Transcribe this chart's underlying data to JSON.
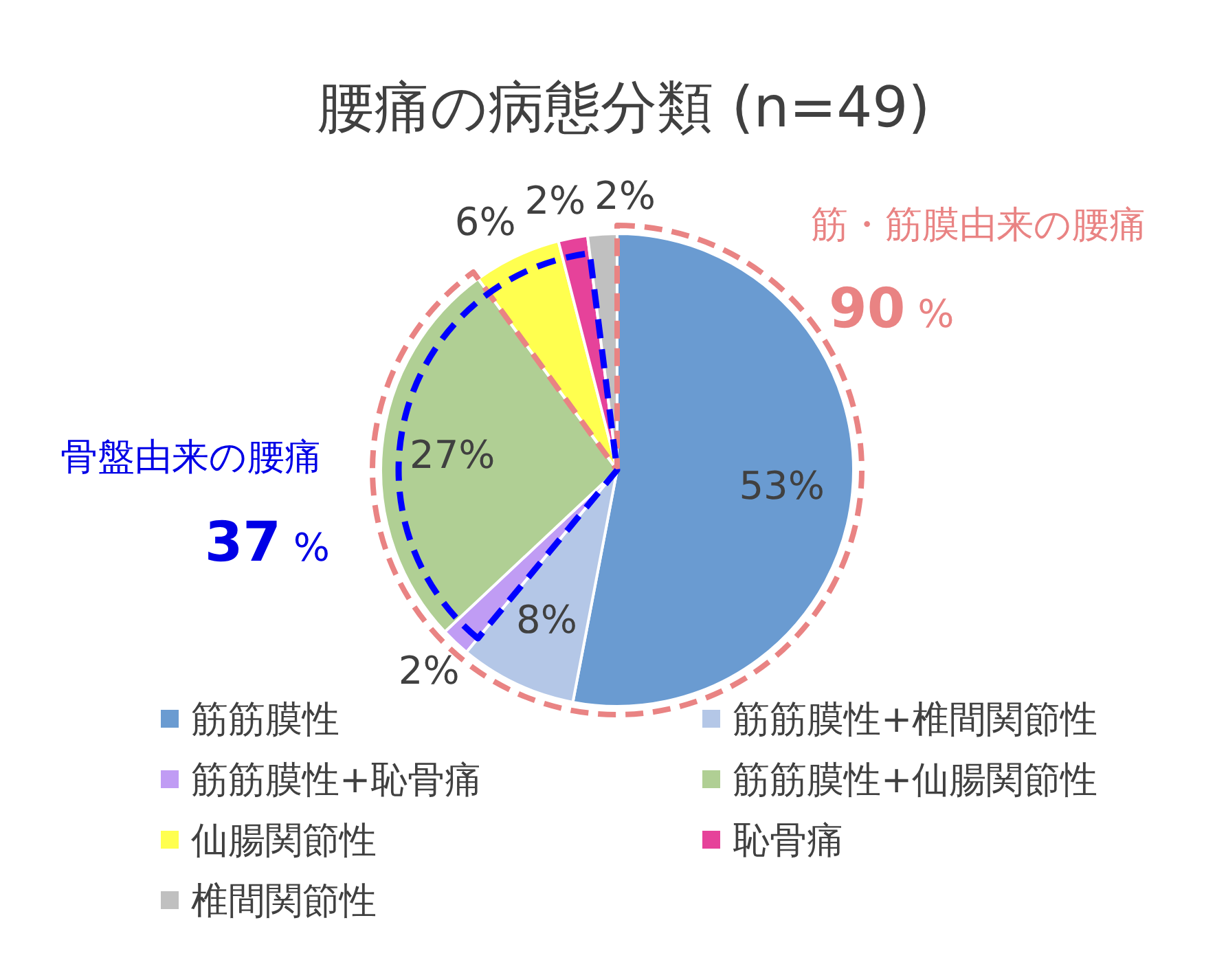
{
  "chart_data": {
    "type": "pie",
    "title": "腰痛の病態分類 (n=49)",
    "categories": [
      "筋筋膜性",
      "筋筋膜性+椎間関節性",
      "筋筋膜性+恥骨痛",
      "筋筋膜性+仙腸関節性",
      "仙腸関節性",
      "恥骨痛",
      "椎間関節性"
    ],
    "values": [
      53,
      8,
      2,
      27,
      6,
      2,
      2
    ],
    "colors": [
      "#6a9bd1",
      "#b4c7e7",
      "#c09cf4",
      "#b0cf94",
      "#ffff4f",
      "#e6429a",
      "#c0c0c0"
    ],
    "value_labels": [
      "53%",
      "8%",
      "2%",
      "27%",
      "6%",
      "2%",
      "2%"
    ],
    "legend": "bottom",
    "annotations": [
      "筋・筋膜由来の腰痛",
      "90 %",
      "骨盤由来の腰痛",
      "37 %"
    ]
  }
}
